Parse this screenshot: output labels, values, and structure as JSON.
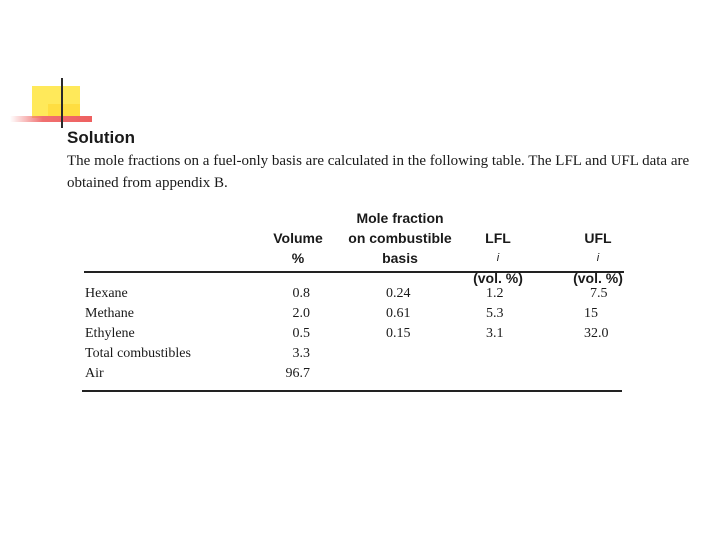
{
  "heading": "Solution",
  "intro": "The mole fractions on a fuel-only basis are calculated in the following table. The LFL and UFL data are obtained from appendix B.",
  "columns": {
    "volume": [
      "Volume",
      "%"
    ],
    "mole": [
      "Mole fraction",
      "on combustible",
      "basis"
    ],
    "lfl": {
      "name": "LFL",
      "sub": "i",
      "unit": "(vol. %)"
    },
    "ufl": {
      "name": "UFL",
      "sub": "i",
      "unit": "(vol. %)"
    }
  },
  "rows": [
    {
      "name": "Hexane",
      "volume": "0.8",
      "mole": "0.24",
      "lfl": "1.2",
      "ufl": "7.5"
    },
    {
      "name": "Methane",
      "volume": "2.0",
      "mole": "0.61",
      "lfl": "5.3",
      "ufl": "15"
    },
    {
      "name": "Ethylene",
      "volume": "0.5",
      "mole": "0.15",
      "lfl": "3.1",
      "ufl": "32.0"
    },
    {
      "name": "Total combustibles",
      "volume": "3.3",
      "mole": "",
      "lfl": "",
      "ufl": ""
    },
    {
      "name": "Air",
      "volume": "96.7",
      "mole": "",
      "lfl": "",
      "ufl": ""
    }
  ]
}
